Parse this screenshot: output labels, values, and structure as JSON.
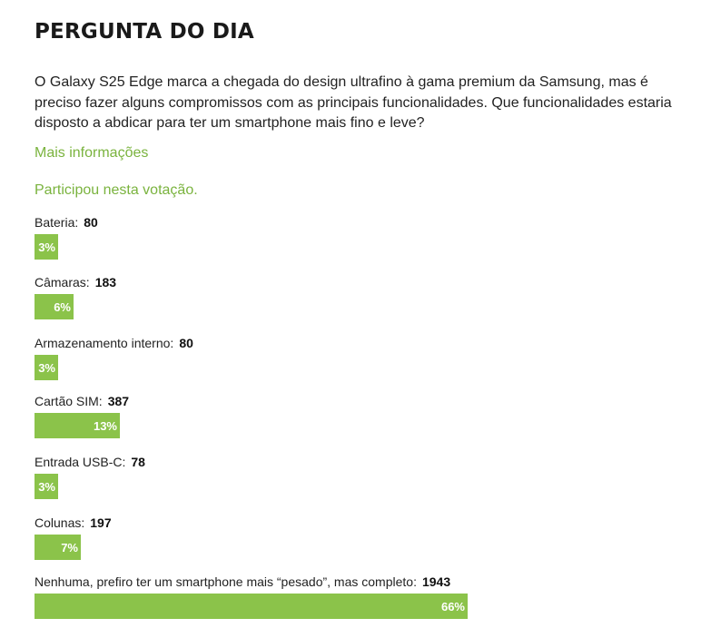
{
  "poll": {
    "title": "PERGUNTA DO DIA",
    "question": "O Galaxy S25 Edge marca a chegada do design ultrafino à gama premium da Samsung, mas é preciso fazer alguns compromissos com as principais funcionalidades. Que funcionalidades estaria disposto a abdicar para ter um smartphone mais fino e leve?",
    "more_info": "Mais informações",
    "voted_msg": "Participou nesta votação.",
    "accent_color": "#7ab33e",
    "bar_color": "#8bc34a",
    "options": [
      {
        "label": "Bateria:",
        "count": "80",
        "percent_label": "3%",
        "fraction": 0.03
      },
      {
        "label": "Câmaras:",
        "count": "183",
        "percent_label": "6%",
        "fraction": 0.06
      },
      {
        "label": "Armazenamento interno:",
        "count": "80",
        "percent_label": "3%",
        "fraction": 0.03
      },
      {
        "label": "Cartão SIM:",
        "count": "387",
        "percent_label": "13%",
        "fraction": 0.13
      },
      {
        "label": "Entrada USB-C:",
        "count": "78",
        "percent_label": "3%",
        "fraction": 0.03
      },
      {
        "label": "Colunas:",
        "count": "197",
        "percent_label": "7%",
        "fraction": 0.07
      },
      {
        "label": "Nenhuma, prefiro ter um smartphone mais “pesado”, mas completo:",
        "count": "1943",
        "percent_label": "66%",
        "fraction": 0.66
      }
    ]
  }
}
